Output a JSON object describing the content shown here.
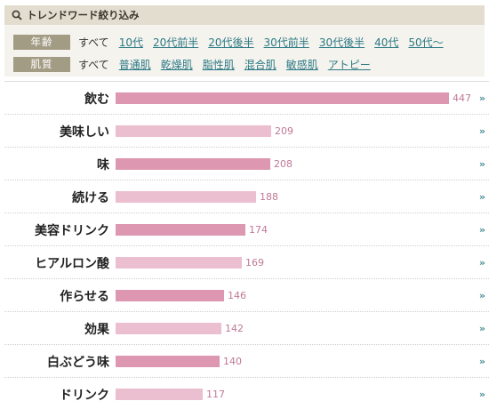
{
  "filter": {
    "title": "トレンドワード絞り込み",
    "search_icon": "search-icon",
    "age": {
      "label": "年齢",
      "current": "すべて",
      "options": [
        "10代",
        "20代前半",
        "20代後半",
        "30代前半",
        "30代後半",
        "40代",
        "50代〜"
      ]
    },
    "skin": {
      "label": "肌質",
      "current": "すべて",
      "options": [
        "普通肌",
        "乾燥肌",
        "脂性肌",
        "混合肌",
        "敏感肌",
        "アトピー"
      ]
    }
  },
  "colors": {
    "bar_dark": "#dd97b0",
    "bar_light": "#ecbfd0",
    "link": "#2c7a86",
    "count": "#c07896"
  },
  "arrow_label": "»",
  "ranking": {
    "max": 447,
    "items": [
      {
        "word": "飲む",
        "count": 447,
        "value": 447
      },
      {
        "word": "美味しい",
        "count": 209,
        "value": 209
      },
      {
        "word": "味",
        "count": 208,
        "value": 208
      },
      {
        "word": "続ける",
        "count": 188,
        "value": 188
      },
      {
        "word": "美容ドリンク",
        "count": 174,
        "value": 174
      },
      {
        "word": "ヒアルロン酸",
        "count": 169,
        "value": 169
      },
      {
        "word": "作らせる",
        "count": 146,
        "value": 146
      },
      {
        "word": "効果",
        "count": 142,
        "value": 142
      },
      {
        "word": "白ぶどう味",
        "count": 140,
        "value": 140
      },
      {
        "word": "ドリンク",
        "count": 117,
        "value": 117
      }
    ]
  }
}
